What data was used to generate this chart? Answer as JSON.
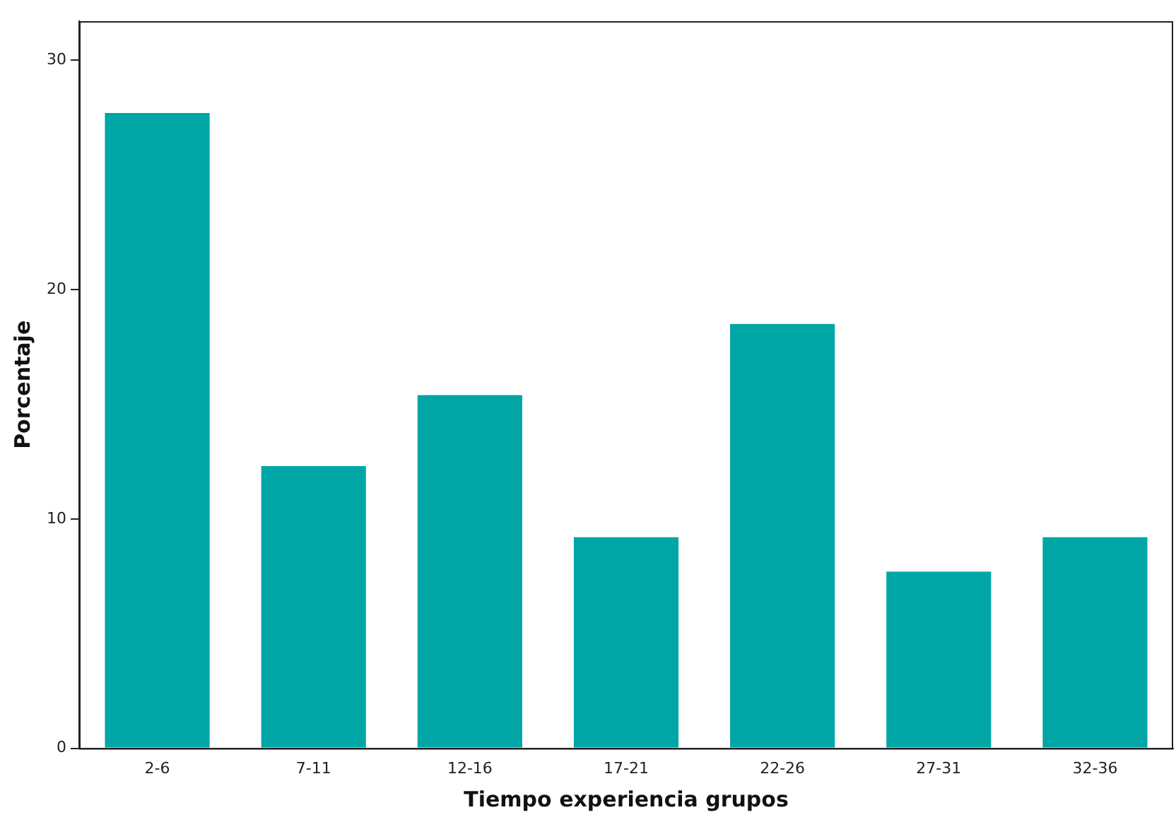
{
  "chart_data": {
    "type": "bar",
    "xlabel": "Tiempo experiencia grupos",
    "ylabel": "Porcentaje",
    "categories": [
      "2-6",
      "7-11",
      "12-16",
      "17-21",
      "22-26",
      "27-31",
      "32-36"
    ],
    "values": [
      27.7,
      12.3,
      15.4,
      9.2,
      18.5,
      7.7,
      9.2
    ],
    "color": "#00a6a6",
    "ylim": [
      0,
      31.7
    ],
    "yticks": [
      0,
      10,
      20,
      30
    ],
    "grid": false,
    "legend": false
  }
}
